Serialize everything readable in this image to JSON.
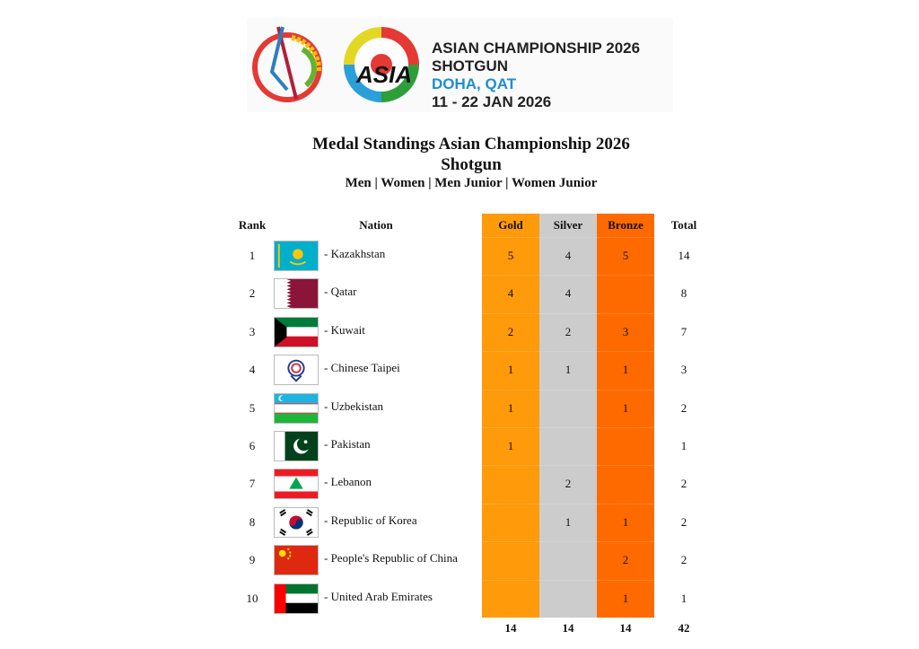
{
  "logo": {
    "line1": "ASIAN CHAMPIONSHIP 2026",
    "line2": "SHOTGUN",
    "line3": "DOHA, QAT",
    "line4": "11 - 22 JAN 2026"
  },
  "title": "Medal Standings Asian Championship 2026",
  "subtitle": "Shotgun",
  "categories": "Men | Women | Men Junior | Women Junior",
  "headers": {
    "rank": "Rank",
    "nation": "Nation",
    "gold": "Gold",
    "silver": "Silver",
    "bronze": "Bronze",
    "total": "Total"
  },
  "colors": {
    "gold": "#ff9a0a",
    "silver": "#cccccc",
    "bronze": "#ff6a00"
  },
  "rows": [
    {
      "rank": "1",
      "flag": "kazakhstan-flag-icon",
      "nation": "- Kazakhstan",
      "gold": "5",
      "silver": "4",
      "bronze": "5",
      "total": "14"
    },
    {
      "rank": "2",
      "flag": "qatar-flag-icon",
      "nation": "- Qatar",
      "gold": "4",
      "silver": "4",
      "bronze": "",
      "total": "8"
    },
    {
      "rank": "3",
      "flag": "kuwait-flag-icon",
      "nation": "- Kuwait",
      "gold": "2",
      "silver": "2",
      "bronze": "3",
      "total": "7"
    },
    {
      "rank": "4",
      "flag": "chinese-taipei-flag-icon",
      "nation": "- Chinese Taipei",
      "gold": "1",
      "silver": "1",
      "bronze": "1",
      "total": "3"
    },
    {
      "rank": "5",
      "flag": "uzbekistan-flag-icon",
      "nation": "- Uzbekistan",
      "gold": "1",
      "silver": "",
      "bronze": "1",
      "total": "2"
    },
    {
      "rank": "6",
      "flag": "pakistan-flag-icon",
      "nation": "- Pakistan",
      "gold": "1",
      "silver": "",
      "bronze": "",
      "total": "1"
    },
    {
      "rank": "7",
      "flag": "lebanon-flag-icon",
      "nation": "- Lebanon",
      "gold": "",
      "silver": "2",
      "bronze": "",
      "total": "2"
    },
    {
      "rank": "8",
      "flag": "korea-flag-icon",
      "nation": "- Republic of Korea",
      "gold": "",
      "silver": "1",
      "bronze": "1",
      "total": "2"
    },
    {
      "rank": "9",
      "flag": "china-flag-icon",
      "nation": "- People's Republic of China",
      "gold": "",
      "silver": "",
      "bronze": "2",
      "total": "2"
    },
    {
      "rank": "10",
      "flag": "uae-flag-icon",
      "nation": "- United Arab Emirates",
      "gold": "",
      "silver": "",
      "bronze": "1",
      "total": "1"
    }
  ],
  "totals": {
    "gold": "14",
    "silver": "14",
    "bronze": "14",
    "total": "42"
  }
}
